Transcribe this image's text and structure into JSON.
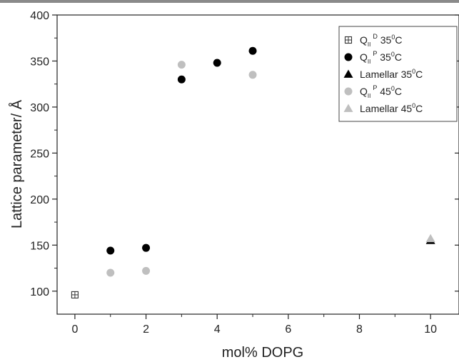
{
  "chart_data": {
    "type": "scatter",
    "xlabel": "mol% DOPG",
    "ylabel": "Lattice parameter/ Å",
    "xlim": [
      -0.5,
      10.8
    ],
    "ylim": [
      75,
      400
    ],
    "xticks": [
      0,
      2,
      4,
      6,
      8,
      10
    ],
    "yticks": [
      100,
      150,
      200,
      250,
      300,
      350,
      400
    ],
    "grid": false,
    "legend_position": "top-right",
    "series": [
      {
        "id": "qd35",
        "legend": {
          "main": "Q",
          "sub": "II",
          "sup": "D",
          "rest1": " 35",
          "deg": "0",
          "rest2": "C"
        },
        "marker": "crossed-square",
        "color": "#333333",
        "points": [
          {
            "x": 0,
            "y": 96
          }
        ]
      },
      {
        "id": "qp35",
        "legend": {
          "main": "Q",
          "sub": "II",
          "sup": "P",
          "rest1": " 35",
          "deg": "0",
          "rest2": "C"
        },
        "marker": "circle",
        "color": "#000000",
        "points": [
          {
            "x": 1,
            "y": 144
          },
          {
            "x": 2,
            "y": 147
          },
          {
            "x": 3,
            "y": 330
          },
          {
            "x": 4,
            "y": 348
          },
          {
            "x": 5,
            "y": 361
          }
        ]
      },
      {
        "id": "lam35",
        "legend": {
          "main": "Lamellar 35",
          "sub": "",
          "sup": "",
          "rest1": "",
          "deg": "0",
          "rest2": "C"
        },
        "marker": "triangle",
        "color": "#000000",
        "points": [
          {
            "x": 10,
            "y": 155
          }
        ]
      },
      {
        "id": "qp45",
        "legend": {
          "main": "Q",
          "sub": "II",
          "sup": "P",
          "rest1": " 45",
          "deg": "0",
          "rest2": "C"
        },
        "marker": "circle",
        "color": "#bfbfbf",
        "points": [
          {
            "x": 1,
            "y": 120
          },
          {
            "x": 2,
            "y": 122
          },
          {
            "x": 3,
            "y": 346
          },
          {
            "x": 5,
            "y": 335
          }
        ]
      },
      {
        "id": "lam45",
        "legend": {
          "main": "Lamellar 45",
          "sub": "",
          "sup": "",
          "rest1": "",
          "deg": "0",
          "rest2": "C"
        },
        "marker": "triangle",
        "color": "#bfbfbf",
        "points": [
          {
            "x": 10,
            "y": 157
          }
        ]
      }
    ]
  }
}
